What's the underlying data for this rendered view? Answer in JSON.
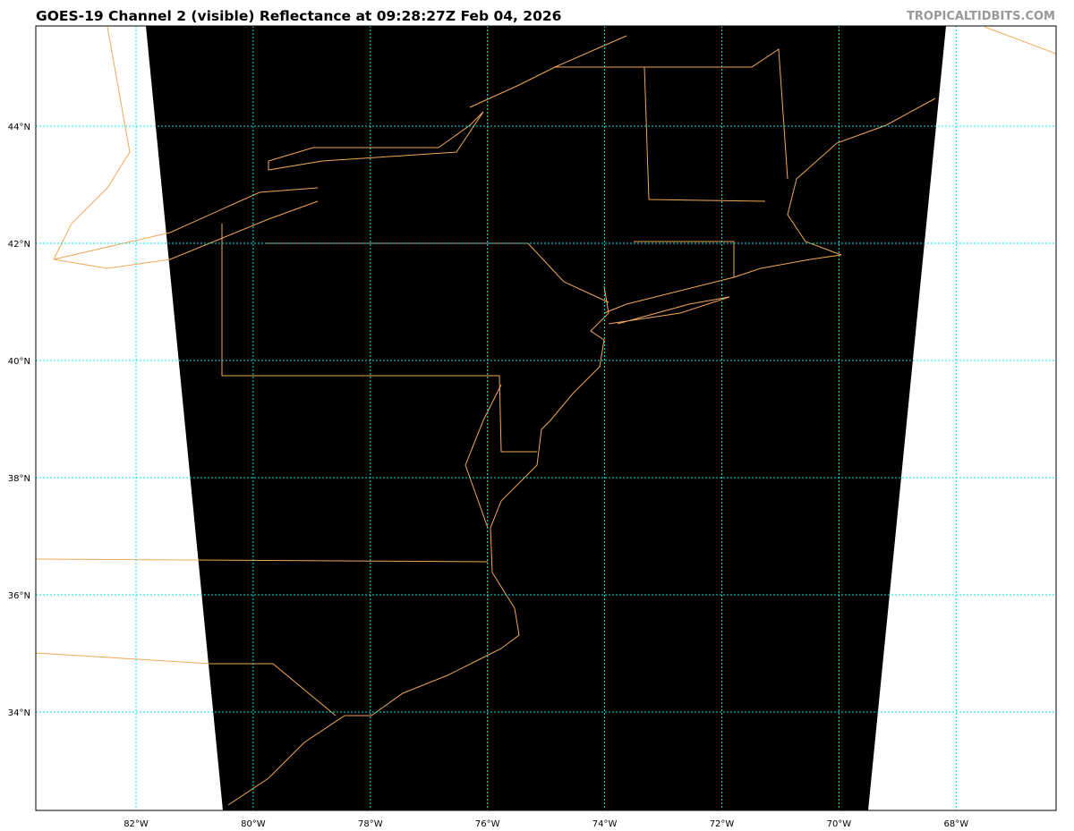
{
  "title": "GOES-19 Channel 2 (visible) Reflectance at 09:28:27Z Feb 04, 2026",
  "credit": "TROPICALTIDBITS.COM",
  "map": {
    "lon_labels": [
      "82°W",
      "80°W",
      "78°W",
      "76°W",
      "74°W",
      "72°W",
      "70°W",
      "68°W"
    ],
    "lat_labels": [
      "44°N",
      "42°N",
      "40°N",
      "38°N",
      "36°N",
      "34°N"
    ],
    "colors": {
      "grid": "#00e5e5",
      "coastline": "#f0a858",
      "imagery": "#000000",
      "background": "#ffffff"
    }
  }
}
